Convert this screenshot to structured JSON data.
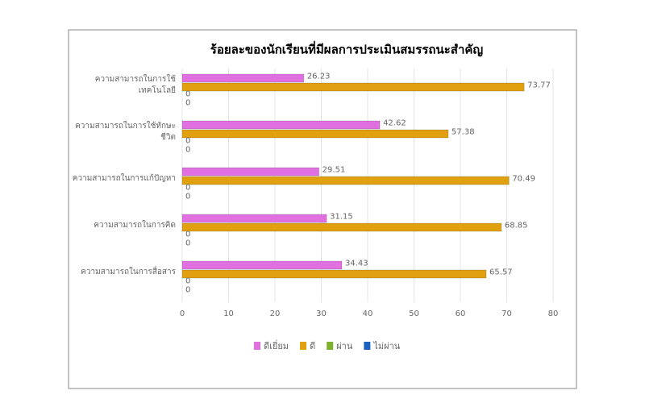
{
  "chart_data": {
    "type": "hbar",
    "title": "ร้อยละของนักเรียนที่มีผลการประเมินสมรรถนะสำคัญ",
    "categories": [
      "ความสามารถในการใช้เทคโนโลยี",
      "ความสามารถในการใช้ทักษะชีวิต",
      "ความสามารถในการแก้ปัญหา",
      "ความสามารถในการคิด",
      "ความสามารถในการสื่อสาร"
    ],
    "series": [
      {
        "name": "ดีเยี่ยม",
        "color": "#e070e0",
        "values": [
          26.23,
          42.62,
          29.51,
          31.15,
          34.43
        ]
      },
      {
        "name": "ดี",
        "color": "#e0a010",
        "values": [
          73.77,
          57.38,
          70.49,
          68.85,
          65.57
        ]
      },
      {
        "name": "ผ่าน",
        "color": "#80b030",
        "values": [
          0,
          0,
          0,
          0,
          0
        ]
      },
      {
        "name": "ไม่ผ่าน",
        "color": "#1a62c0",
        "values": [
          0,
          0,
          0,
          0,
          0
        ]
      }
    ],
    "xlim": [
      0,
      80
    ],
    "xticks": [
      0,
      10,
      20,
      30,
      40,
      50,
      60,
      70,
      80
    ],
    "grid": true,
    "legend": "bottom"
  }
}
